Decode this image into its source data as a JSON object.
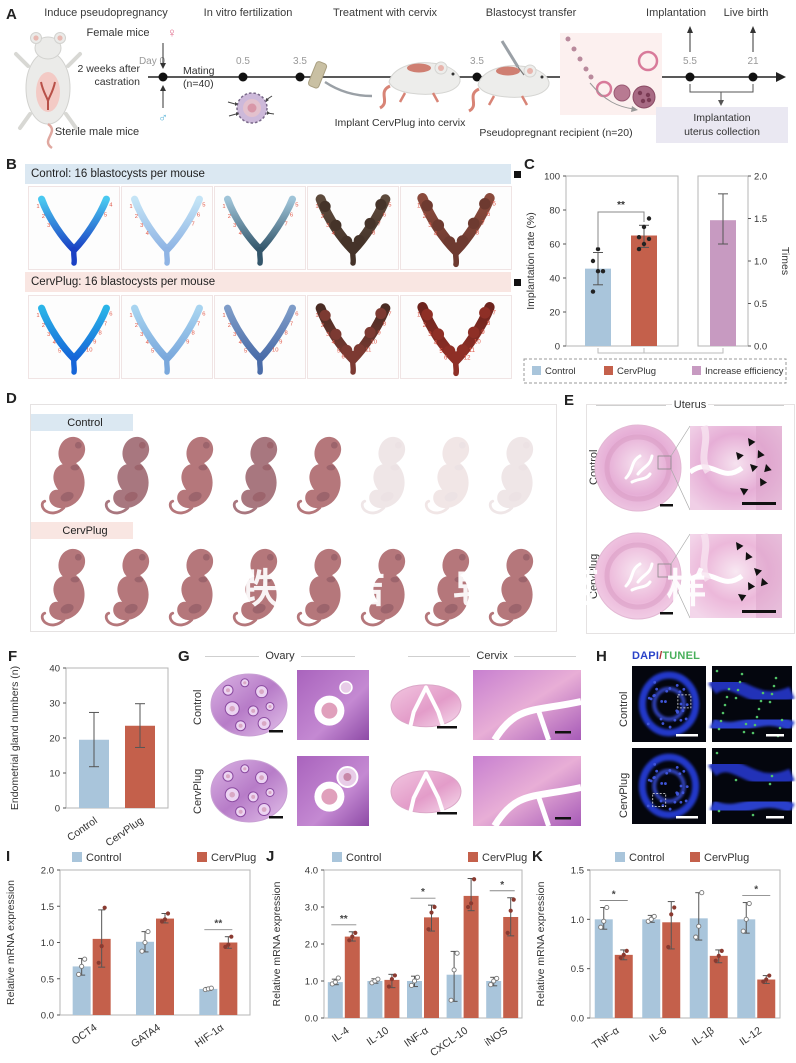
{
  "figure": {
    "colors": {
      "control": "#a9c5db",
      "cervplug": "#c4604b",
      "increase": "#c79ac1",
      "point_dark": "#8a3a30",
      "banner_blue": "#dbe8f2",
      "banner_pink": "#f9e6e2"
    },
    "panels": {
      "A": {
        "label": "A",
        "step_titles": [
          "Induce pseudopregnancy",
          "In vitro fertilization",
          "Treatment with cervix",
          "Blastocyst transfer",
          "Implantation",
          "Live birth"
        ],
        "female_mice": "Female mice",
        "female_symbol": "♀",
        "male_symbol": "♂",
        "day0": "Day 0",
        "mating": "Mating",
        "mating_n": "(n=40)",
        "castration_line1": "2 weeks after",
        "castration_line2": "castration",
        "sterile": "Sterile male mice",
        "timeline_ticks": [
          "0.5",
          "3.5",
          "3.5",
          "5.5",
          "21"
        ],
        "implant_caption": "Implant CervPlug into cervix",
        "recipient_caption": "Pseudopregnant recipient (n=20)",
        "collection_line1": "Implantation",
        "collection_line2": "uterus collection"
      },
      "B": {
        "label": "B",
        "control_header": "Control: 16 blastocysts per mouse",
        "cervplug_header": "CervPlug: 16 blastocysts per mouse",
        "control_uteri": [
          {
            "color": "#1b41c4",
            "color2": "#49c8f0",
            "count": 5,
            "bumpy": false
          },
          {
            "color": "#8fb4e4",
            "color2": "#c4e4f6",
            "count": 7,
            "bumpy": false
          },
          {
            "color": "#33566b",
            "color2": "#9fc4d8",
            "count": 7,
            "bumpy": false
          },
          {
            "color": "#453329",
            "color2": "#5d4a3c",
            "count": 8,
            "bumpy": true
          },
          {
            "color": "#6e3a30",
            "color2": "#8a4a3c",
            "count": 8,
            "bumpy": true
          }
        ],
        "cervplug_uteri": [
          {
            "color": "#1565d8",
            "color2": "#2ab4e8",
            "count": 10,
            "bumpy": false
          },
          {
            "color": "#7aa8dc",
            "color2": "#a8d4f0",
            "count": 9,
            "bumpy": false
          },
          {
            "color": "#4a6ca8",
            "color2": "#7e9cc8",
            "count": 10,
            "bumpy": false
          },
          {
            "color": "#7c3a32",
            "color2": "#4a2c24",
            "count": 11,
            "bumpy": true
          },
          {
            "color": "#8e2f26",
            "color2": "#6e241e",
            "count": 12,
            "bumpy": true
          }
        ]
      },
      "C": {
        "label": "C"
      },
      "D": {
        "label": "D",
        "control": "Control",
        "cervplug": "CervPlug",
        "watermark": "跌 佶 皂 区 样",
        "control_pups": [
          1,
          1,
          1,
          1,
          1,
          0,
          0,
          0
        ],
        "cervplug_pups": [
          1,
          1,
          1,
          1,
          1,
          1,
          1,
          1
        ]
      },
      "E": {
        "label": "E",
        "title": "Uterus",
        "rows": [
          "Control",
          "CervPlug"
        ]
      },
      "F": {
        "label": "F"
      },
      "G": {
        "label": "G",
        "columns": [
          "Ovary",
          "Cervix"
        ],
        "rows": [
          "Control",
          "CervPlug"
        ]
      },
      "H": {
        "label": "H",
        "title_dapi": "DAPI",
        "title_slash": "/",
        "title_tunel": "TUNEL",
        "dapi_color": "#2b43c8",
        "tunel_color": "#49b05c",
        "rows": [
          "Control",
          "CervPlug"
        ]
      },
      "I": {
        "label": "I"
      },
      "J": {
        "label": "J"
      },
      "K": {
        "label": "K"
      }
    }
  },
  "chart_data": [
    {
      "id": "C",
      "type": "bar",
      "ylabel": "Implantation rate (%)",
      "ylim": [
        0,
        100
      ],
      "yticks": [
        "0",
        "20",
        "40",
        "60",
        "80",
        "100"
      ],
      "series": [
        {
          "name": "Control",
          "value": 45.5,
          "err": [
            36,
            55
          ],
          "points": [
            32,
            44,
            44,
            50,
            57
          ],
          "color_key": "control"
        },
        {
          "name": "CervPlug",
          "value": 65,
          "err": [
            58,
            71
          ],
          "points": [
            57,
            60,
            63,
            64,
            70,
            75
          ],
          "color_key": "cervplug"
        }
      ],
      "sig": "**",
      "right": {
        "name": "Increase efficiency",
        "ylabel": "Times",
        "ylim": [
          0,
          2
        ],
        "yticks": [
          "0.0",
          "0.5",
          "1.0",
          "1.5",
          "2.0"
        ],
        "value": 1.48,
        "err": [
          1.2,
          1.79
        ],
        "color_key": "increase"
      },
      "legend": [
        "Control",
        "CervPlug",
        "Increase efficiency"
      ]
    },
    {
      "id": "F",
      "type": "bar",
      "ylabel": "Endometrial gland numbers (n)",
      "ylim": [
        0,
        40
      ],
      "yticks": [
        "0",
        "10",
        "20",
        "30",
        "40"
      ],
      "categories": [
        "Control",
        "CervPlug"
      ],
      "values": [
        19.5,
        23.5
      ],
      "errors": [
        [
          11.8,
          27.3
        ],
        [
          17.3,
          29.8
        ]
      ],
      "color_keys": [
        "control",
        "cervplug"
      ]
    },
    {
      "id": "I",
      "type": "grouped-bar",
      "ylabel": "Relative mRNA expression",
      "ylim": [
        0,
        2
      ],
      "yticks": [
        "0.0",
        "0.5",
        "1.0",
        "1.5",
        "2.0"
      ],
      "categories": [
        "OCT4",
        "GATA4",
        "HIF-1α"
      ],
      "legend": [
        "Control",
        "CervPlug"
      ],
      "series": [
        {
          "name": "Control",
          "color_key": "control",
          "values": [
            0.67,
            1.01,
            0.36
          ],
          "errors": [
            [
              0.55,
              0.78
            ],
            [
              0.87,
              1.15
            ],
            [
              0.34,
              0.38
            ]
          ],
          "points": [
            [
              0.56,
              0.67,
              0.77
            ],
            [
              0.88,
              1.0,
              1.15
            ],
            [
              0.35,
              0.36,
              0.37
            ]
          ]
        },
        {
          "name": "CervPlug",
          "color_key": "cervplug",
          "values": [
            1.05,
            1.33,
            1.0
          ],
          "errors": [
            [
              0.66,
              1.45
            ],
            [
              1.27,
              1.4
            ],
            [
              0.92,
              1.08
            ]
          ],
          "points": [
            [
              0.72,
              0.95,
              1.48
            ],
            [
              1.29,
              1.32,
              1.4
            ],
            [
              0.94,
              0.97,
              1.08
            ]
          ]
        }
      ],
      "sig": [
        {
          "category": "HIF-1α",
          "label": "**"
        }
      ]
    },
    {
      "id": "J",
      "type": "grouped-bar",
      "ylabel": "Relative mRNA expression",
      "ylim": [
        0,
        4
      ],
      "yticks": [
        "0.0",
        "1.0",
        "2.0",
        "3.0",
        "4.0"
      ],
      "categories": [
        "IL-4",
        "IL-10",
        "INF-α",
        "CXCL-10",
        "iNOS"
      ],
      "legend": [
        "Control",
        "CervPlug"
      ],
      "series": [
        {
          "name": "Control",
          "color_key": "control",
          "values": [
            0.97,
            1.0,
            1.0,
            1.17,
            1.0
          ],
          "errors": [
            [
              0.9,
              1.05
            ],
            [
              0.94,
              1.06
            ],
            [
              0.85,
              1.13
            ],
            [
              0.45,
              1.8
            ],
            [
              0.87,
              1.1
            ]
          ],
          "points": [
            [
              0.92,
              0.97,
              1.08
            ],
            [
              0.95,
              1.0,
              1.05
            ],
            [
              0.88,
              1.0,
              1.1
            ],
            [
              0.48,
              1.3,
              1.75
            ],
            [
              0.9,
              1.0,
              1.07
            ]
          ]
        },
        {
          "name": "CervPlug",
          "color_key": "cervplug",
          "values": [
            2.2,
            1.03,
            2.72,
            3.3,
            2.73
          ],
          "errors": [
            [
              2.08,
              2.33
            ],
            [
              0.82,
              1.18
            ],
            [
              2.35,
              3.05
            ],
            [
              2.9,
              3.77
            ],
            [
              2.22,
              3.25
            ]
          ],
          "points": [
            [
              2.1,
              2.2,
              2.3
            ],
            [
              0.85,
              1.05,
              1.15
            ],
            [
              2.4,
              2.85,
              3.0
            ],
            [
              3.0,
              3.1,
              3.75
            ],
            [
              2.3,
              2.9,
              3.2
            ]
          ]
        }
      ],
      "sig": [
        {
          "category": "IL-4",
          "label": "**"
        },
        {
          "category": "INF-α",
          "label": "*"
        },
        {
          "category": "iNOS",
          "label": "*"
        }
      ]
    },
    {
      "id": "K",
      "type": "grouped-bar",
      "ylabel": "Relative mRNA expression",
      "ylim": [
        0,
        1.5
      ],
      "yticks": [
        "0.0",
        "0.5",
        "1.0",
        "1.5"
      ],
      "categories": [
        "TNF-α",
        "IL-6",
        "IL-1β",
        "IL-12"
      ],
      "legend": [
        "Control",
        "CervPlug"
      ],
      "series": [
        {
          "name": "Control",
          "color_key": "control",
          "values": [
            1.0,
            1.0,
            1.01,
            1.0
          ],
          "errors": [
            [
              0.9,
              1.12
            ],
            [
              0.97,
              1.04
            ],
            [
              0.79,
              1.27
            ],
            [
              0.86,
              1.17
            ]
          ],
          "points": [
            [
              0.92,
              0.98,
              1.12
            ],
            [
              0.98,
              1.0,
              1.03
            ],
            [
              0.82,
              0.93,
              1.27
            ],
            [
              0.88,
              1.0,
              1.16
            ]
          ]
        },
        {
          "name": "CervPlug",
          "color_key": "cervplug",
          "values": [
            0.64,
            0.97,
            0.63,
            0.39
          ],
          "errors": [
            [
              0.59,
              0.69
            ],
            [
              0.7,
              1.18
            ],
            [
              0.56,
              0.69
            ],
            [
              0.35,
              0.43
            ]
          ],
          "points": [
            [
              0.61,
              0.64,
              0.68
            ],
            [
              0.72,
              1.05,
              1.12
            ],
            [
              0.58,
              0.63,
              0.68
            ],
            [
              0.37,
              0.39,
              0.43
            ]
          ]
        }
      ],
      "sig": [
        {
          "category": "TNF-α",
          "label": "*"
        },
        {
          "category": "IL-12",
          "label": "*"
        }
      ]
    }
  ]
}
